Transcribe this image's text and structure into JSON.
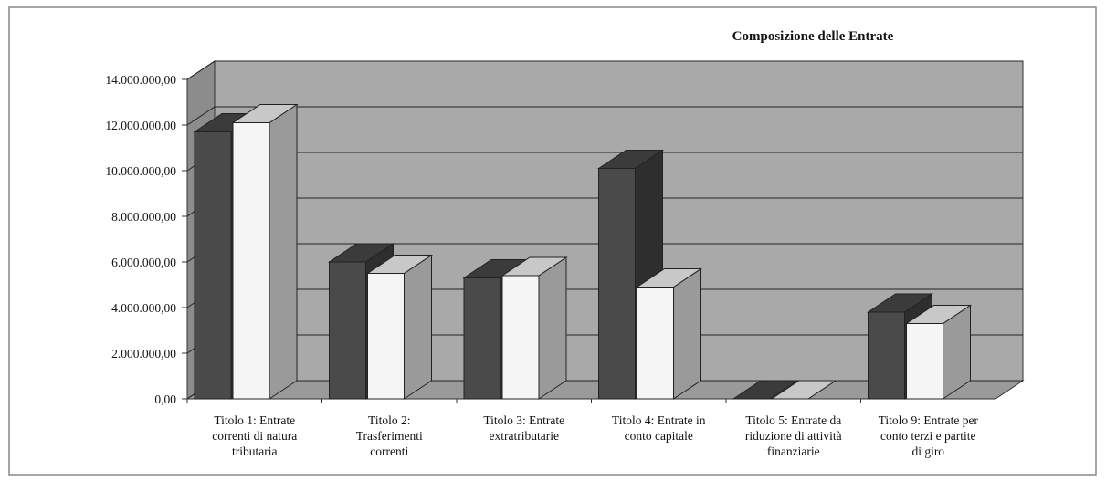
{
  "chart_data": {
    "type": "bar3d",
    "title": "Composizione delle Entrate",
    "categories": [
      "Titolo 1: Entrate correnti di natura tributaria",
      "Titolo 2: Trasferimenti correnti",
      "Titolo 3: Entrate extratributarie",
      "Titolo 4: Entrate in conto capitale",
      "Titolo 5: Entrate da riduzione di attività finanziarie",
      "Titolo 9: Entrate per conto terzi e partite di giro"
    ],
    "series": [
      {
        "color": "#4a4a4a",
        "values": [
          11700000,
          6000000,
          5300000,
          10100000,
          0,
          3800000
        ]
      },
      {
        "color": "#f5f5f5",
        "values": [
          12100000,
          5500000,
          5400000,
          4900000,
          0,
          3300000
        ]
      }
    ],
    "ylim": [
      0,
      14000000
    ],
    "yticks": [
      {
        "value": 0,
        "label": "0,00"
      },
      {
        "value": 2000000,
        "label": "2.000.000,00"
      },
      {
        "value": 4000000,
        "label": "4.000.000,00"
      },
      {
        "value": 6000000,
        "label": "6.000.000,00"
      },
      {
        "value": 8000000,
        "label": "8.000.000,00"
      },
      {
        "value": 10000000,
        "label": "10.000.000,00"
      },
      {
        "value": 12000000,
        "label": "12.000.000,00"
      },
      {
        "value": 14000000,
        "label": "14.000.000,00"
      }
    ],
    "grid": true
  }
}
